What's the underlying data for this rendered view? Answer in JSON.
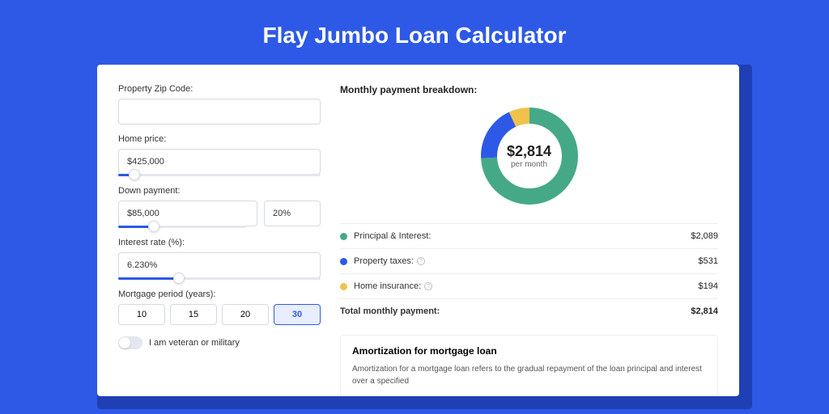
{
  "page": {
    "title": "Flay Jumbo Loan Calculator",
    "background_color": "#2e59e6",
    "card_shadow_color": "#1f3fb4"
  },
  "form": {
    "zip": {
      "label": "Property Zip Code:",
      "value": ""
    },
    "home_price": {
      "label": "Home price:",
      "value": "$425,000",
      "slider_pct": 8
    },
    "down_payment": {
      "label": "Down payment:",
      "value": "$85,000",
      "pct_value": "20%",
      "slider_pct": 18
    },
    "interest_rate": {
      "label": "Interest rate (%):",
      "value": "6.230%",
      "slider_pct": 30
    },
    "period": {
      "label": "Mortgage period (years):",
      "options": [
        "10",
        "15",
        "20",
        "30"
      ],
      "selected": "30"
    },
    "veteran": {
      "label": "I am veteran or military",
      "checked": false
    }
  },
  "breakdown": {
    "title": "Monthly payment breakdown:",
    "center_amount": "$2,814",
    "center_sub": "per month",
    "items": [
      {
        "label": "Principal & Interest:",
        "value": "$2,089",
        "color": "#45a988",
        "info": false
      },
      {
        "label": "Property taxes:",
        "value": "$531",
        "color": "#2e59e6",
        "info": true
      },
      {
        "label": "Home insurance:",
        "value": "$194",
        "color": "#f0c24b",
        "info": true
      }
    ],
    "total": {
      "label": "Total monthly payment:",
      "value": "$2,814"
    }
  },
  "donut": {
    "type": "donut",
    "background_color": "#ffffff",
    "ring_thickness": 20,
    "slices": [
      {
        "name": "principal_interest",
        "color": "#45a988",
        "pct": 74.3
      },
      {
        "name": "property_taxes",
        "color": "#2e59e6",
        "pct": 18.8
      },
      {
        "name": "home_insurance",
        "color": "#f0c24b",
        "pct": 6.9
      }
    ]
  },
  "amort": {
    "title": "Amortization for mortgage loan",
    "body": "Amortization for a mortgage loan refers to the gradual repayment of the loan principal and interest over a specified"
  }
}
